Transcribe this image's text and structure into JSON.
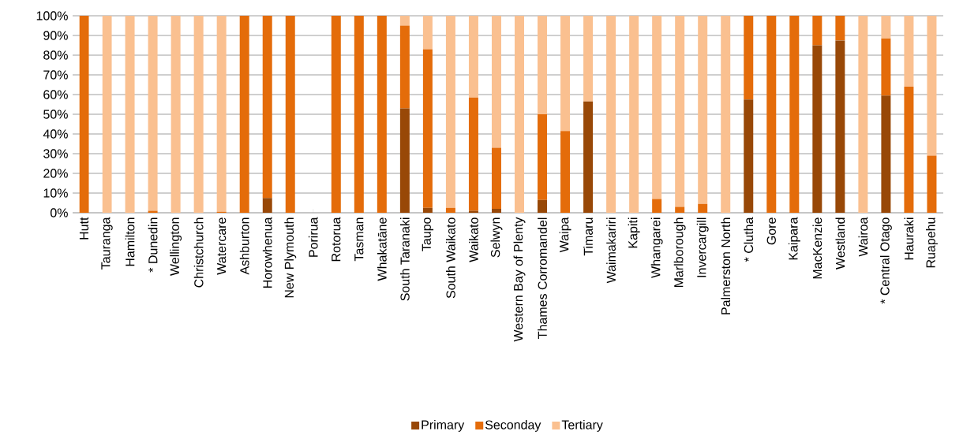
{
  "chart_data": {
    "type": "bar",
    "stacked": true,
    "categories": [
      "Hutt",
      "Tauranga",
      "Hamilton",
      "* Dunedin",
      "Wellington",
      "Christchurch",
      "Watercare",
      "Ashburton",
      "Horowhenua",
      "New Plymouth",
      "Porirua",
      "Rotorua",
      "Tasman",
      "Whakatāne",
      "South Taranaki",
      "Taupo",
      "South Waikato",
      "Waikato",
      "Selwyn",
      "Western Bay of Plenty",
      "Thames Corromandel",
      "Waipa",
      "Timaru",
      "Waimakariri",
      "Kapiti",
      "Whangarei",
      "Marlborough",
      "Invercargill",
      "Palmerston North",
      "* Clutha",
      "Gore",
      "Kaipara",
      "MacKenzie",
      "Westland",
      "Wairoa",
      "* Central Otago",
      "Hauraki",
      "Ruapehu"
    ],
    "series": [
      {
        "name": "Primary",
        "color": "#984807",
        "values": [
          0,
          0,
          0,
          0,
          0,
          0,
          0,
          0,
          7.5,
          0,
          0,
          0,
          0,
          0,
          53,
          2.5,
          0,
          1,
          2,
          0,
          6.5,
          0,
          56.5,
          0,
          0,
          0,
          0,
          0,
          0,
          57.5,
          0,
          0,
          85,
          87.5,
          0,
          59.5,
          0,
          0
        ]
      },
      {
        "name": "Seconday",
        "color": "#e46c0a",
        "values": [
          100,
          0,
          0,
          1,
          0,
          0,
          0.5,
          100,
          92.5,
          100,
          0,
          100,
          100,
          100,
          42,
          80.5,
          2.5,
          57.5,
          31,
          0,
          43.5,
          41.5,
          0,
          0,
          0,
          7,
          3,
          4.5,
          0,
          42.5,
          100,
          100,
          15,
          12.5,
          0,
          29,
          64,
          29
        ]
      },
      {
        "name": "Tertiary",
        "color": "#fac090",
        "values": [
          0,
          100,
          100,
          99,
          100,
          100,
          99.5,
          0,
          0,
          0,
          0,
          0,
          0,
          0,
          5,
          17,
          97.5,
          41.5,
          67,
          100,
          50,
          58.5,
          43.5,
          100,
          100,
          93,
          97,
          95.5,
          100,
          0,
          0,
          0,
          0,
          0,
          100,
          11.5,
          36,
          71
        ]
      }
    ],
    "ylim": [
      0,
      100
    ],
    "yticks": [
      {
        "value": 0,
        "label": "0%"
      },
      {
        "value": 10,
        "label": "10%"
      },
      {
        "value": 20,
        "label": "20%"
      },
      {
        "value": 30,
        "label": "30%"
      },
      {
        "value": 40,
        "label": "40%"
      },
      {
        "value": 50,
        "label": "50%"
      },
      {
        "value": 60,
        "label": "60%"
      },
      {
        "value": 70,
        "label": "70%"
      },
      {
        "value": 80,
        "label": "80%"
      },
      {
        "value": 90,
        "label": "90%"
      },
      {
        "value": 100,
        "label": "100%"
      }
    ],
    "grid": "y",
    "legend": "bottom"
  }
}
